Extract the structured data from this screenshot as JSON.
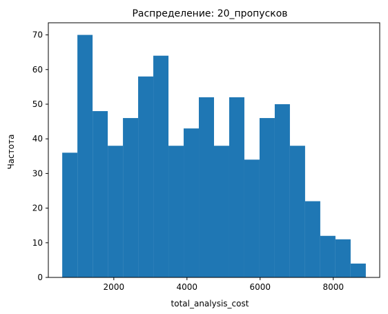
{
  "chart_data": {
    "type": "bar",
    "title": "Распределение: 20_пропусков",
    "xlabel": "total_analysis_cost",
    "ylabel": "Частота",
    "bin_edges": [
      590,
      1005,
      1420,
      1835,
      2250,
      2665,
      3080,
      3495,
      3910,
      4325,
      4740,
      5155,
      5570,
      5985,
      6400,
      6815,
      7230,
      7645,
      8060,
      8475,
      8890
    ],
    "values": [
      36,
      70,
      48,
      38,
      46,
      58,
      64,
      38,
      43,
      52,
      38,
      52,
      34,
      46,
      50,
      38,
      22,
      12,
      11,
      4
    ],
    "xlim": [
      210,
      9270
    ],
    "ylim": [
      0,
      73.5
    ],
    "xticks": [
      2000,
      4000,
      6000,
      8000
    ],
    "yticks": [
      0,
      10,
      20,
      30,
      40,
      50,
      60,
      70
    ],
    "bar_color": "#1f77b4",
    "grid": false
  }
}
